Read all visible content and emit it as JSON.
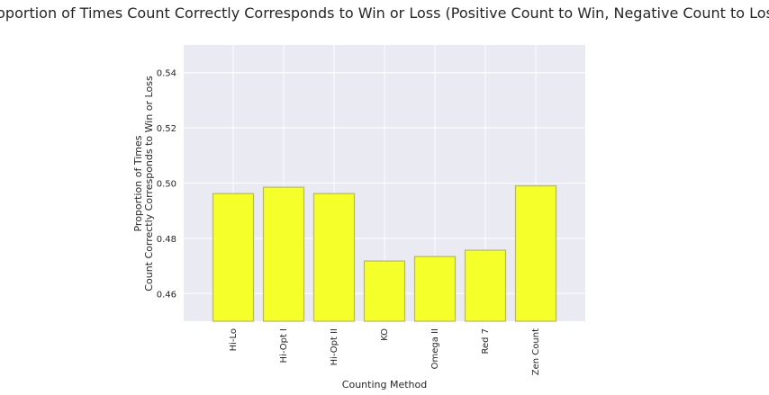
{
  "chart_data": {
    "type": "bar",
    "title": "Proportion of Times Count Correctly Corresponds to Win or Loss (Positive Count to Win, Negative Count to Loss)",
    "xlabel": "Counting Method",
    "ylabel_lines": [
      "Proportion of Times",
      "Count Correctly Corresponds to Win or Loss"
    ],
    "categories": [
      "Hi-Lo",
      "Hi-Opt I",
      "Hi-Opt II",
      "KO",
      "Omega II",
      "Red 7",
      "Zen Count"
    ],
    "values": [
      0.4962,
      0.4985,
      0.4962,
      0.4718,
      0.4734,
      0.4757,
      0.499
    ],
    "ylim": [
      0.45,
      0.55
    ],
    "yticks": [
      "0.46",
      "0.48",
      "0.50",
      "0.52",
      "0.54"
    ],
    "ytick_values": [
      0.46,
      0.48,
      0.5,
      0.52,
      0.54
    ],
    "grid": true,
    "colors": {
      "bar_fill": "#f5ff2a",
      "bar_edge": "#b8b85a",
      "plot_bg": "#eaeaf2",
      "grid": "#ffffff",
      "text": "#262626"
    }
  }
}
